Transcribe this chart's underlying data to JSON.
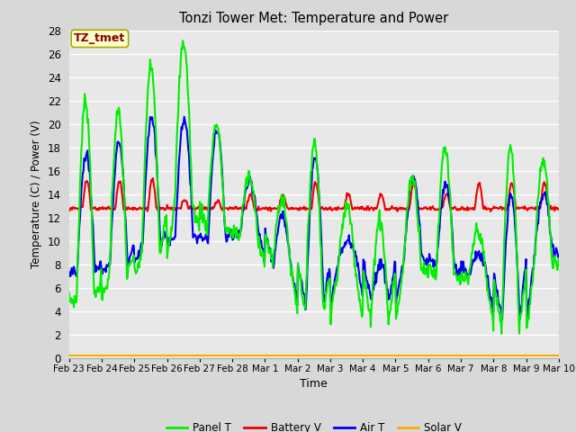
{
  "title": "Tonzi Tower Met: Temperature and Power",
  "xlabel": "Time",
  "ylabel": "Temperature (C) / Power (V)",
  "ylim": [
    0,
    28
  ],
  "yticks": [
    0,
    2,
    4,
    6,
    8,
    10,
    12,
    14,
    16,
    18,
    20,
    22,
    24,
    26,
    28
  ],
  "xtick_labels": [
    "Feb 23",
    "Feb 24",
    "Feb 25",
    "Feb 26",
    "Feb 27",
    "Feb 28",
    "Mar 1",
    "Mar 2",
    "Mar 3",
    "Mar 4",
    "Mar 5",
    "Mar 6",
    "Mar 7",
    "Mar 8",
    "Mar 9",
    "Mar 10"
  ],
  "annotation_text": "TZ_tmet",
  "annotation_color": "#880000",
  "annotation_bg": "#ffffcc",
  "annotation_edge": "#aaaa00",
  "panel_t_color": "#00ee00",
  "battery_v_color": "#ee0000",
  "air_t_color": "#0000ee",
  "solar_v_color": "#ffaa00",
  "fig_bg_color": "#d8d8d8",
  "plot_bg_color": "#e8e8e8",
  "grid_color": "#ffffff",
  "legend_labels": [
    "Panel T",
    "Battery V",
    "Air T",
    "Solar V"
  ],
  "n_days": 15,
  "panel_day_peaks": [
    22,
    21,
    25,
    27,
    20,
    15.5,
    13.5,
    18.5,
    13,
    12,
    15.5,
    18,
    11,
    18,
    17
  ],
  "panel_day_mins": [
    5,
    7,
    9,
    13,
    11,
    10.5,
    8,
    4,
    7.5,
    3,
    8,
    7,
    6.5,
    2.5,
    8
  ],
  "air_day_peaks": [
    17.5,
    18.5,
    20.5,
    20.5,
    19.5,
    15,
    12,
    17.5,
    10,
    8,
    15.5,
    15,
    9,
    14,
    14
  ],
  "air_day_mins": [
    7.5,
    8,
    10,
    10.5,
    10,
    11,
    8,
    4.5,
    8.5,
    5,
    8.5,
    8,
    7,
    3.5,
    9
  ],
  "batt_baseline": 12.8,
  "batt_peaks": [
    15.2,
    15.2,
    15.3,
    13.5,
    13.5,
    14,
    14,
    15,
    14,
    14,
    15,
    14,
    15,
    15,
    15
  ]
}
